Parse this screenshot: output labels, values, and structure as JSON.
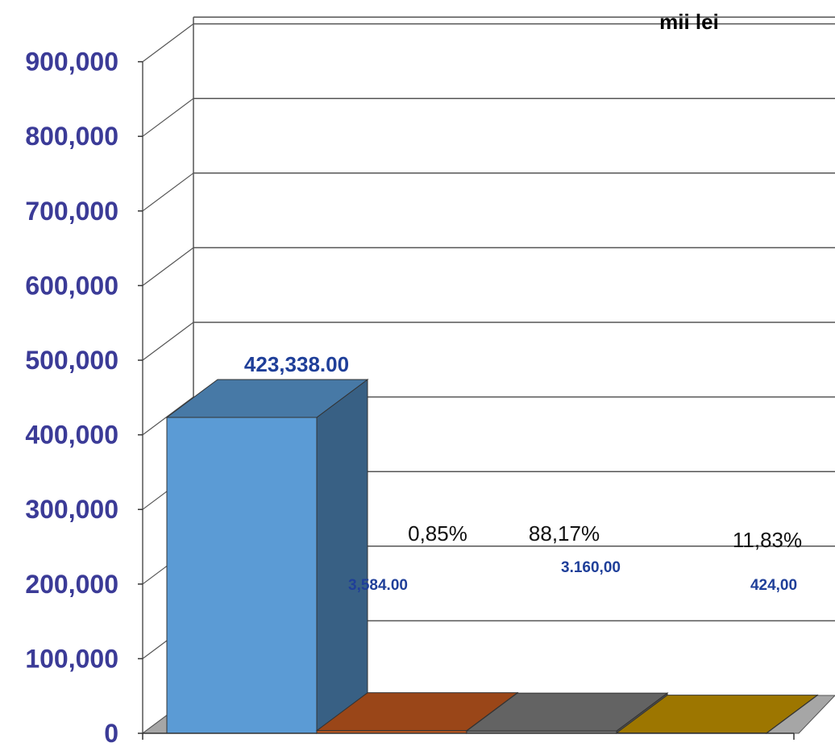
{
  "chart_data": {
    "type": "bar",
    "unit_label": "mii lei",
    "y_ticks": [
      "900,000",
      "800,000",
      "700,000",
      "600,000",
      "500,000",
      "400,000",
      "300,000",
      "200,000",
      "100,000",
      "0"
    ],
    "ylim": [
      0,
      900000
    ],
    "grid": true,
    "bars": [
      {
        "value": 423338,
        "color": "#5b9bd5"
      },
      {
        "value": 3584,
        "color": "#c55a1f"
      },
      {
        "value": 3160,
        "color": "#7f7f7f"
      },
      {
        "value": 424,
        "color": "#c99700"
      }
    ],
    "data_labels": [
      {
        "text": "423,338.00",
        "size": 26,
        "style": "blue"
      },
      {
        "text": "0,85%",
        "size": 26,
        "style": "pct"
      },
      {
        "text": "88,17%",
        "size": 26,
        "style": "pct"
      },
      {
        "text": "11,83%",
        "size": 26,
        "style": "pct"
      },
      {
        "text": "3,584.00",
        "size": 19,
        "style": "blue"
      },
      {
        "text": "3.160,00",
        "size": 19,
        "style": "blue"
      },
      {
        "text": "424,00",
        "size": 19,
        "style": "blue"
      }
    ]
  }
}
